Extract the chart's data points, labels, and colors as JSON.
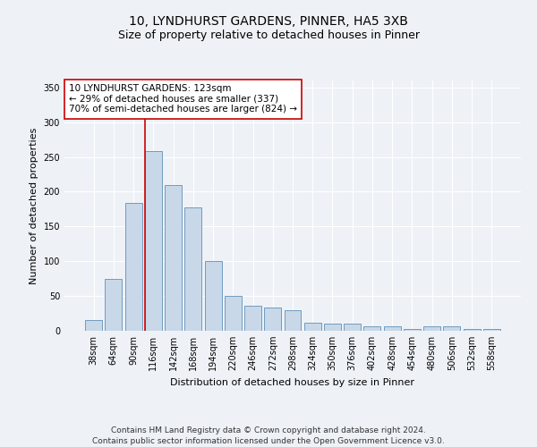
{
  "title": "10, LYNDHURST GARDENS, PINNER, HA5 3XB",
  "subtitle": "Size of property relative to detached houses in Pinner",
  "xlabel": "Distribution of detached houses by size in Pinner",
  "ylabel": "Number of detached properties",
  "categories": [
    "38sqm",
    "64sqm",
    "90sqm",
    "116sqm",
    "142sqm",
    "168sqm",
    "194sqm",
    "220sqm",
    "246sqm",
    "272sqm",
    "298sqm",
    "324sqm",
    "350sqm",
    "376sqm",
    "402sqm",
    "428sqm",
    "454sqm",
    "480sqm",
    "506sqm",
    "532sqm",
    "558sqm"
  ],
  "values": [
    15,
    75,
    184,
    258,
    209,
    178,
    100,
    50,
    36,
    33,
    30,
    12,
    10,
    10,
    6,
    6,
    2,
    6,
    6,
    2,
    3
  ],
  "bar_color": "#c8d8e8",
  "bar_edge_color": "#6090b8",
  "property_line_color": "#cc0000",
  "annotation_text": "10 LYNDHURST GARDENS: 123sqm\n← 29% of detached houses are smaller (337)\n70% of semi-detached houses are larger (824) →",
  "annotation_box_color": "#ffffff",
  "annotation_box_edge_color": "#cc0000",
  "ylim": [
    0,
    360
  ],
  "yticks": [
    0,
    50,
    100,
    150,
    200,
    250,
    300,
    350
  ],
  "footer_line1": "Contains HM Land Registry data © Crown copyright and database right 2024.",
  "footer_line2": "Contains public sector information licensed under the Open Government Licence v3.0.",
  "background_color": "#eef2f7",
  "plot_background_color": "#eef2f7",
  "title_fontsize": 10,
  "subtitle_fontsize": 9,
  "axis_label_fontsize": 8,
  "tick_fontsize": 7,
  "annotation_fontsize": 7.5,
  "footer_fontsize": 6.5
}
